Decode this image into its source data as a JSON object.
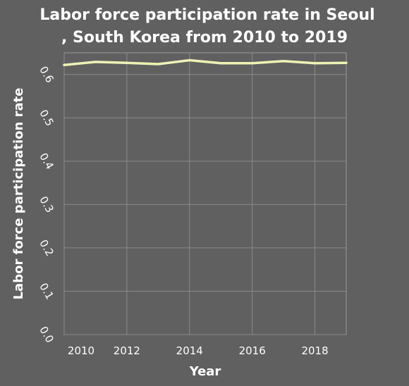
{
  "chart_data": {
    "type": "line",
    "title_lines": [
      "Labor force participation rate in Seoul",
      ", South Korea from 2010 to 2019"
    ],
    "xlabel": "Year",
    "ylabel": "Labor force participation rate",
    "xlim": [
      2010,
      2019
    ],
    "ylim": [
      0.0,
      0.65
    ],
    "x_ticks": [
      2010,
      2012,
      2014,
      2016,
      2018
    ],
    "x_tick_labels": [
      "2010",
      "2012",
      "2014",
      "2016",
      "2018"
    ],
    "y_ticks": [
      0.0,
      0.1,
      0.2,
      0.3,
      0.4,
      0.5,
      0.6
    ],
    "y_tick_labels": [
      "0.0",
      "0.1",
      "0.2",
      "0.3",
      "0.4",
      "0.5",
      "0.6"
    ],
    "series": [
      {
        "name": "Labor force participation rate",
        "x": [
          2010,
          2011,
          2012,
          2013,
          2014,
          2015,
          2016,
          2017,
          2018,
          2019
        ],
        "values": [
          0.622,
          0.629,
          0.627,
          0.624,
          0.633,
          0.626,
          0.626,
          0.631,
          0.626,
          0.627
        ],
        "color": "#eef2b4"
      }
    ],
    "grid": true
  }
}
